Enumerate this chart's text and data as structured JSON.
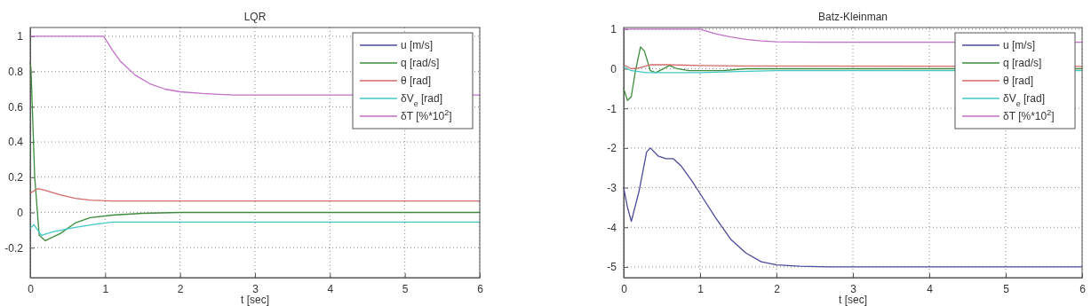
{
  "chart_data": [
    {
      "type": "line",
      "title": "LQR",
      "xlabel": "t [sec]",
      "xlim": [
        0,
        6
      ],
      "xticks": [
        0,
        1,
        2,
        3,
        4,
        5,
        6
      ],
      "ylim": [
        -0.37,
        1.05
      ],
      "yticks": [
        {
          "value": -0.2,
          "label": "-0.2"
        },
        0,
        {
          "value": 0.2,
          "label": "0.2"
        },
        {
          "value": 0.4,
          "label": "0.4"
        },
        {
          "value": 0.6,
          "label": "0.6"
        },
        {
          "value": 0.8,
          "label": "0.8"
        },
        1
      ],
      "grid": true,
      "legend": "top right",
      "line_style": "solid",
      "marker": "none",
      "series": [
        {
          "name": "u [m/s]",
          "color": "#4b4b9b"
        },
        {
          "name": "q [rad/s]",
          "color": "#3c8c3c",
          "x": [
            0,
            0.01,
            0.06,
            0.12,
            0.2,
            0.3,
            0.4,
            0.6,
            0.8,
            1.1,
            1.5,
            2,
            6
          ],
          "values": [
            0.85,
            0.82,
            0.2,
            -0.13,
            -0.16,
            -0.14,
            -0.12,
            -0.06,
            -0.03,
            -0.015,
            -0.005,
            0,
            0
          ]
        },
        {
          "name": "θ [rad]",
          "color": "#d46a6a",
          "x": [
            0,
            0.1,
            0.2,
            0.4,
            0.6,
            0.8,
            1.1,
            6
          ],
          "values": [
            0.11,
            0.135,
            0.125,
            0.1,
            0.08,
            0.07,
            0.065,
            0.065
          ]
        },
        {
          "name": "δV$_{e}$ [rad]",
          "color": "#40c8c8",
          "x": [
            0,
            0.05,
            0.15,
            0.3,
            0.6,
            0.9,
            1.1,
            6
          ],
          "values": [
            -0.09,
            -0.07,
            -0.13,
            -0.11,
            -0.085,
            -0.065,
            -0.055,
            -0.055
          ]
        },
        {
          "name": "δT [%*10$^{2}$]",
          "color": "#c070c8",
          "x": [
            0,
            0.98,
            1.1,
            1.2,
            1.4,
            1.6,
            1.8,
            2,
            2.3,
            2.7,
            6
          ],
          "values": [
            1,
            1,
            0.92,
            0.86,
            0.78,
            0.73,
            0.7,
            0.685,
            0.675,
            0.667,
            0.667
          ]
        }
      ]
    },
    {
      "type": "line",
      "title": "Batz-Kleinman",
      "xlabel": "t [sec]",
      "xlim": [
        0,
        6
      ],
      "xticks": [
        0,
        1,
        2,
        3,
        4,
        5,
        6
      ],
      "ylim": [
        -5.27,
        1.04
      ],
      "yticks": [
        -5,
        -4,
        -3,
        -2,
        -1,
        0,
        1
      ],
      "grid": true,
      "legend": "top right",
      "line_style": "solid",
      "marker": "none",
      "series": [
        {
          "name": "u [m/s]",
          "color": "#4b4b9b",
          "x": [
            0,
            0.05,
            0.1,
            0.2,
            0.3,
            0.35,
            0.45,
            0.55,
            0.65,
            0.75,
            0.9,
            1,
            1.2,
            1.4,
            1.6,
            1.8,
            2,
            2.3,
            2.7,
            6
          ],
          "values": [
            -3,
            -3.5,
            -3.85,
            -3.1,
            -2.1,
            -2,
            -2.2,
            -2.27,
            -2.27,
            -2.45,
            -2.85,
            -3.15,
            -3.75,
            -4.3,
            -4.65,
            -4.87,
            -4.95,
            -4.98,
            -5,
            -5
          ]
        },
        {
          "name": "q [rad/s]",
          "color": "#3c8c3c",
          "x": [
            0,
            0.05,
            0.1,
            0.15,
            0.22,
            0.27,
            0.35,
            0.42,
            0.5,
            0.6,
            0.7,
            0.85,
            1,
            1.3,
            1.6,
            6
          ],
          "values": [
            -0.5,
            -0.8,
            -0.7,
            -0.1,
            0.55,
            0.45,
            -0.05,
            -0.1,
            -0.02,
            0.08,
            0,
            -0.05,
            -0.05,
            -0.05,
            0,
            0
          ]
        },
        {
          "name": "θ [rad]",
          "color": "#d46a6a",
          "x": [
            0,
            0.1,
            0.2,
            0.35,
            0.6,
            1,
            1.5,
            6
          ],
          "values": [
            0.1,
            0,
            0.02,
            0.1,
            0.1,
            0.08,
            0.07,
            0.06
          ]
        },
        {
          "name": "δV$_{e}$ [rad]",
          "color": "#40c8c8",
          "x": [
            0,
            0.1,
            0.3,
            1,
            1.5,
            2,
            6
          ],
          "values": [
            0.05,
            -0.05,
            -0.1,
            -0.1,
            -0.07,
            -0.05,
            -0.05
          ]
        },
        {
          "name": "δT [%*10$^{2}$]",
          "color": "#c070c8",
          "x": [
            0,
            1,
            1.2,
            1.4,
            1.6,
            1.8,
            2,
            2.5,
            6
          ],
          "values": [
            1,
            1,
            0.88,
            0.8,
            0.74,
            0.7,
            0.68,
            0.67,
            0.67
          ]
        }
      ]
    }
  ]
}
